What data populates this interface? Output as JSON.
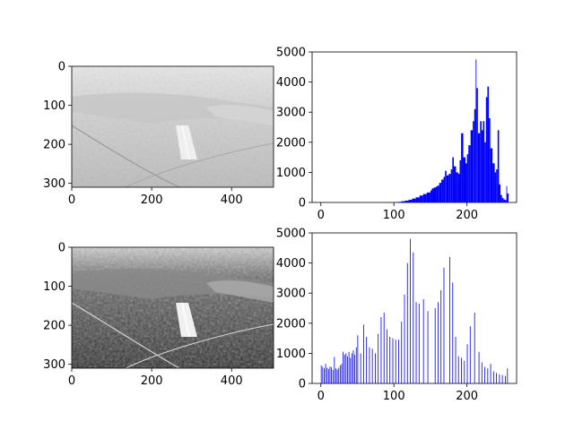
{
  "chart_data": [
    {
      "type": "image",
      "panel": "top-left",
      "description_of_content": "grayscale aerial photo of airport runway, low contrast",
      "xlim": [
        0,
        505
      ],
      "ylim": [
        310,
        0
      ],
      "xticks": [
        0,
        200,
        400
      ],
      "yticks": [
        0,
        100,
        200,
        300
      ],
      "grid": false
    },
    {
      "type": "bar",
      "panel": "top-right",
      "color": "#0000ff",
      "xlim": [
        -12,
        268
      ],
      "ylim": [
        0,
        5000
      ],
      "xticks": [
        0,
        100,
        200
      ],
      "yticks": [
        0,
        1000,
        2000,
        3000,
        4000,
        5000
      ],
      "grid": false,
      "x": [
        100,
        105,
        110,
        115,
        120,
        125,
        130,
        135,
        140,
        145,
        150,
        152,
        155,
        158,
        160,
        162,
        165,
        168,
        170,
        172,
        175,
        178,
        180,
        182,
        185,
        188,
        190,
        192,
        195,
        198,
        200,
        202,
        205,
        208,
        210,
        212,
        213,
        215,
        218,
        220,
        222,
        224,
        226,
        228,
        230,
        232,
        235,
        238,
        240,
        242,
        244,
        246,
        248,
        250,
        252,
        254,
        255
      ],
      "values": [
        5,
        20,
        40,
        60,
        90,
        130,
        170,
        230,
        280,
        330,
        400,
        470,
        500,
        540,
        560,
        650,
        760,
        850,
        1050,
        900,
        950,
        1100,
        1500,
        1200,
        1000,
        950,
        1400,
        2300,
        1500,
        1300,
        1600,
        1900,
        2400,
        2700,
        3100,
        4750,
        3800,
        2300,
        2700,
        2400,
        2700,
        2000,
        3500,
        3850,
        2800,
        1800,
        1300,
        1000,
        1100,
        2400,
        600,
        250,
        150,
        100,
        80,
        550,
        300
      ]
    },
    {
      "type": "image",
      "panel": "bottom-left",
      "description_of_content": "histogram-equalized grayscale aerial photo of airport runway",
      "xlim": [
        0,
        505
      ],
      "ylim": [
        310,
        0
      ],
      "xticks": [
        0,
        200,
        400
      ],
      "yticks": [
        0,
        100,
        200,
        300
      ],
      "grid": false
    },
    {
      "type": "bar",
      "panel": "bottom-right",
      "color": "#0000ff",
      "xlim": [
        -12,
        268
      ],
      "ylim": [
        0,
        5000
      ],
      "xticks": [
        0,
        100,
        200
      ],
      "yticks": [
        0,
        1000,
        2000,
        3000,
        4000,
        5000
      ],
      "grid": false,
      "x": [
        0,
        2,
        4,
        6,
        8,
        10,
        12,
        14,
        16,
        18,
        20,
        22,
        24,
        26,
        28,
        30,
        32,
        34,
        36,
        38,
        40,
        42,
        44,
        46,
        48,
        50,
        54,
        58,
        62,
        66,
        70,
        74,
        78,
        82,
        86,
        90,
        94,
        98,
        102,
        106,
        110,
        114,
        118,
        122,
        126,
        130,
        134,
        140,
        146,
        156,
        160,
        164,
        168,
        176,
        180,
        184,
        188,
        192,
        196,
        200,
        204,
        210,
        216,
        220,
        224,
        228,
        232,
        236,
        240,
        244,
        248,
        252,
        255
      ],
      "values": [
        600,
        550,
        500,
        650,
        520,
        480,
        560,
        540,
        450,
        880,
        500,
        460,
        520,
        600,
        650,
        1050,
        950,
        1000,
        900,
        1050,
        850,
        1000,
        1100,
        950,
        1200,
        1600,
        1000,
        1950,
        1550,
        1200,
        1150,
        1000,
        1650,
        2200,
        2350,
        1800,
        1550,
        1500,
        1450,
        1450,
        2050,
        2950,
        4000,
        4800,
        4350,
        2700,
        2650,
        2800,
        2400,
        2500,
        2700,
        3100,
        3850,
        4200,
        3350,
        1550,
        900,
        850,
        750,
        1300,
        1900,
        2350,
        1050,
        700,
        550,
        500,
        650,
        400,
        350,
        300,
        280,
        250,
        500
      ]
    }
  ]
}
